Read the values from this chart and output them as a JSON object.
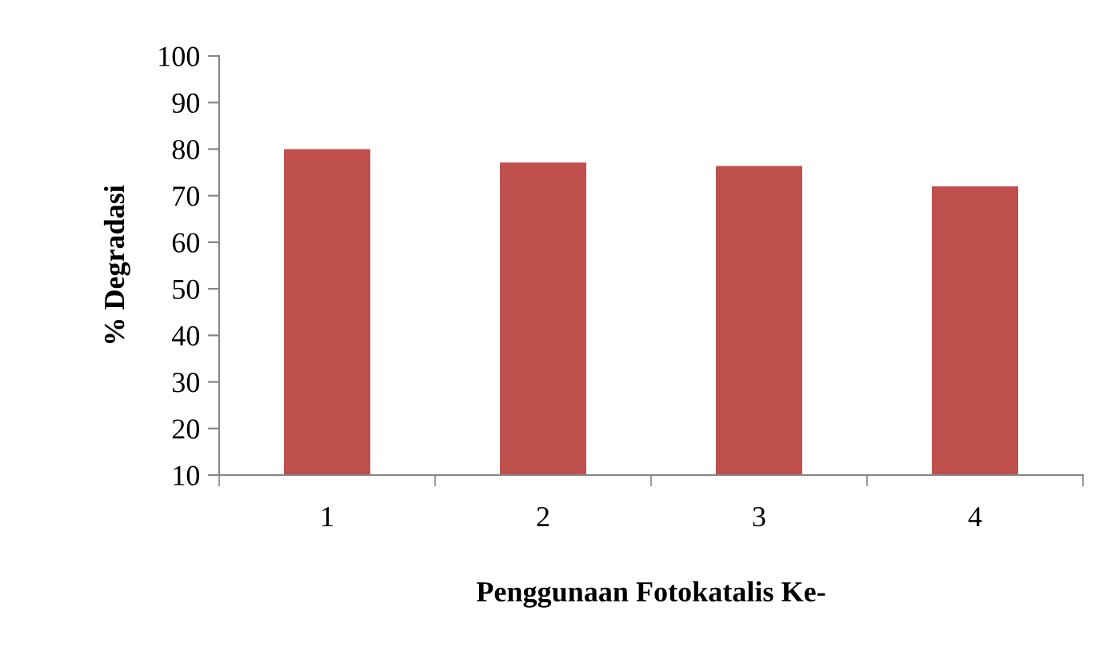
{
  "chart_data": {
    "type": "bar",
    "xlabel": "Penggunaan Fotokatalis Ke-",
    "ylabel": "% Degradasi",
    "categories": [
      "1",
      "2",
      "3",
      "4"
    ],
    "values": [
      80,
      77.1,
      76.4,
      72.0
    ],
    "color": "#c0504d",
    "ylim": [
      10,
      100
    ],
    "yticks": [
      10,
      20,
      30,
      40,
      50,
      60,
      70,
      80,
      90,
      100
    ],
    "grid": false,
    "legend": false
  }
}
